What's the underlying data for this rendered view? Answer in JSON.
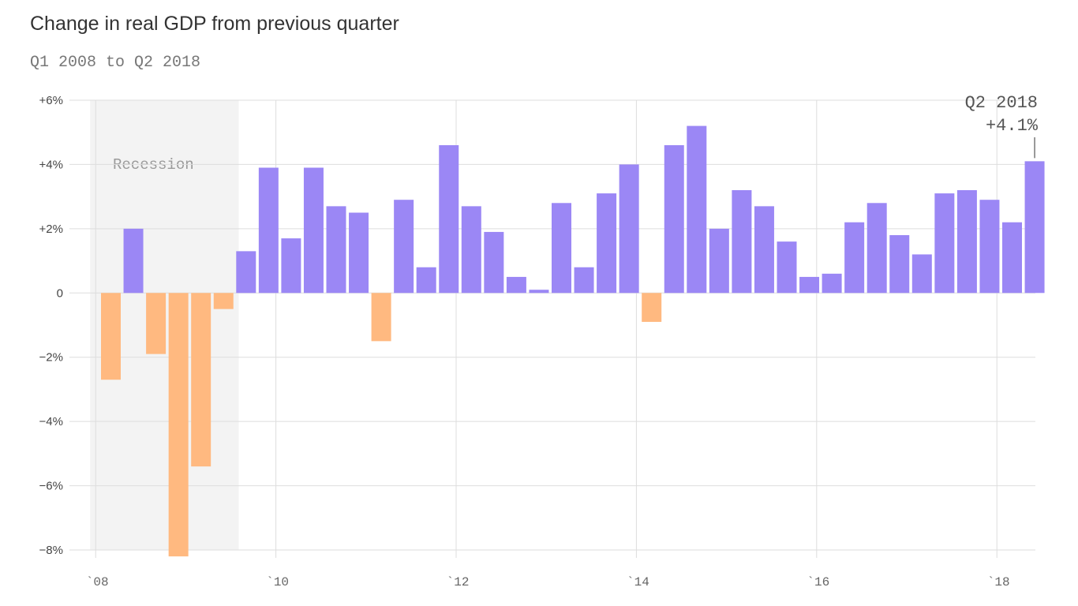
{
  "header": {
    "title": "Change in real GDP from previous quarter",
    "subtitle": "Q1 2008 to Q2 2018"
  },
  "colors": {
    "positive": "#9b87f5",
    "negative": "#ffb980",
    "recession_band": "#f3f3f3",
    "grid": "#dddddd"
  },
  "chart_data": {
    "type": "bar",
    "title": "Change in real GDP from previous quarter",
    "subtitle": "Q1 2008 to Q2 2018",
    "categories": [
      "Q1 2008",
      "Q2 2008",
      "Q3 2008",
      "Q4 2008",
      "Q1 2009",
      "Q2 2009",
      "Q3 2009",
      "Q4 2009",
      "Q1 2010",
      "Q2 2010",
      "Q3 2010",
      "Q4 2010",
      "Q1 2011",
      "Q2 2011",
      "Q3 2011",
      "Q4 2011",
      "Q1 2012",
      "Q2 2012",
      "Q3 2012",
      "Q4 2012",
      "Q1 2013",
      "Q2 2013",
      "Q3 2013",
      "Q4 2013",
      "Q1 2014",
      "Q2 2014",
      "Q3 2014",
      "Q4 2014",
      "Q1 2015",
      "Q2 2015",
      "Q3 2015",
      "Q4 2015",
      "Q1 2016",
      "Q2 2016",
      "Q3 2016",
      "Q4 2016",
      "Q1 2017",
      "Q2 2017",
      "Q3 2017",
      "Q4 2017",
      "Q1 2018",
      "Q2 2018"
    ],
    "values": [
      -2.7,
      2.0,
      -1.9,
      -8.2,
      -5.4,
      -0.5,
      1.3,
      3.9,
      1.7,
      3.9,
      2.7,
      2.5,
      -1.5,
      2.9,
      0.8,
      4.6,
      2.7,
      1.9,
      0.5,
      0.1,
      2.8,
      0.8,
      3.1,
      4.0,
      -0.9,
      4.6,
      5.2,
      2.0,
      3.2,
      2.7,
      1.6,
      0.5,
      0.6,
      2.2,
      2.8,
      1.8,
      1.2,
      3.1,
      3.2,
      2.9,
      2.2,
      4.1
    ],
    "ylim": [
      -8,
      6
    ],
    "yticks": [
      {
        "value": 6,
        "label": "+6%"
      },
      {
        "value": 4,
        "label": "+4%"
      },
      {
        "value": 2,
        "label": "+2%"
      },
      {
        "value": 0,
        "label": "0"
      },
      {
        "value": -2,
        "label": "−2%"
      },
      {
        "value": -4,
        "label": "−4%"
      },
      {
        "value": -6,
        "label": "−6%"
      },
      {
        "value": -8,
        "label": "−8%"
      }
    ],
    "xticks": [
      {
        "index": 0,
        "label": "`08"
      },
      {
        "index": 8,
        "label": "`10"
      },
      {
        "index": 16,
        "label": "`12"
      },
      {
        "index": 24,
        "label": "`14"
      },
      {
        "index": 32,
        "label": "`16"
      },
      {
        "index": 40,
        "label": "`18"
      }
    ],
    "shaded_region": {
      "label": "Recession",
      "start_index": 0,
      "end_index": 5
    },
    "annotation": {
      "index": 41,
      "line1": "Q2 2018",
      "line2": "+4.1%"
    },
    "grid": true
  }
}
